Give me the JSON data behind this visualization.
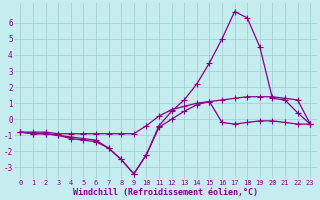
{
  "xlabel": "Windchill (Refroidissement éolien,°C)",
  "background_color": "#c5ecee",
  "line_color": "#8b008b",
  "grid_color": "#9ecdd0",
  "xlim": [
    -0.5,
    23.5
  ],
  "ylim": [
    -3.7,
    7.2
  ],
  "xticks": [
    0,
    1,
    2,
    3,
    4,
    5,
    6,
    7,
    8,
    9,
    10,
    11,
    12,
    13,
    14,
    15,
    16,
    17,
    18,
    19,
    20,
    21,
    22,
    23
  ],
  "yticks": [
    -3,
    -2,
    -1,
    0,
    1,
    2,
    3,
    4,
    5,
    6
  ],
  "line1_x": [
    0,
    1,
    2,
    3,
    4,
    5,
    6,
    7,
    8,
    9,
    10,
    11,
    12,
    13,
    14,
    15,
    16,
    17,
    18,
    19,
    20,
    21,
    22,
    23
  ],
  "line1_y": [
    -0.8,
    -0.9,
    -0.9,
    -1.0,
    -1.1,
    -1.2,
    -1.3,
    -1.8,
    -2.5,
    -3.4,
    -2.2,
    -0.4,
    0.5,
    1.2,
    2.2,
    3.5,
    5.0,
    6.7,
    6.3,
    4.5,
    1.3,
    1.2,
    0.4,
    -0.3
  ],
  "line2_x": [
    0,
    1,
    2,
    3,
    4,
    5,
    6,
    7,
    8,
    9,
    10,
    11,
    12,
    13,
    14,
    15,
    16,
    17,
    18,
    19,
    20,
    21,
    22,
    23
  ],
  "line2_y": [
    -0.8,
    -0.9,
    -0.9,
    -1.0,
    -1.2,
    -1.3,
    -1.4,
    -1.8,
    -2.5,
    -3.4,
    -2.2,
    -0.5,
    0.0,
    0.5,
    0.9,
    1.1,
    -0.2,
    -0.3,
    -0.2,
    -0.1,
    -0.1,
    -0.2,
    -0.3,
    -0.3
  ],
  "line3_x": [
    0,
    1,
    2,
    3,
    4,
    5,
    6,
    7,
    8,
    9,
    10,
    11,
    12,
    13,
    14,
    15,
    16,
    17,
    18,
    19,
    20,
    21,
    22,
    23
  ],
  "line3_y": [
    -0.8,
    -0.8,
    -0.8,
    -0.9,
    -0.9,
    -0.9,
    -0.9,
    -0.9,
    -0.9,
    -0.9,
    -0.4,
    0.2,
    0.6,
    0.8,
    1.0,
    1.1,
    1.2,
    1.3,
    1.4,
    1.4,
    1.4,
    1.3,
    1.2,
    -0.3
  ]
}
